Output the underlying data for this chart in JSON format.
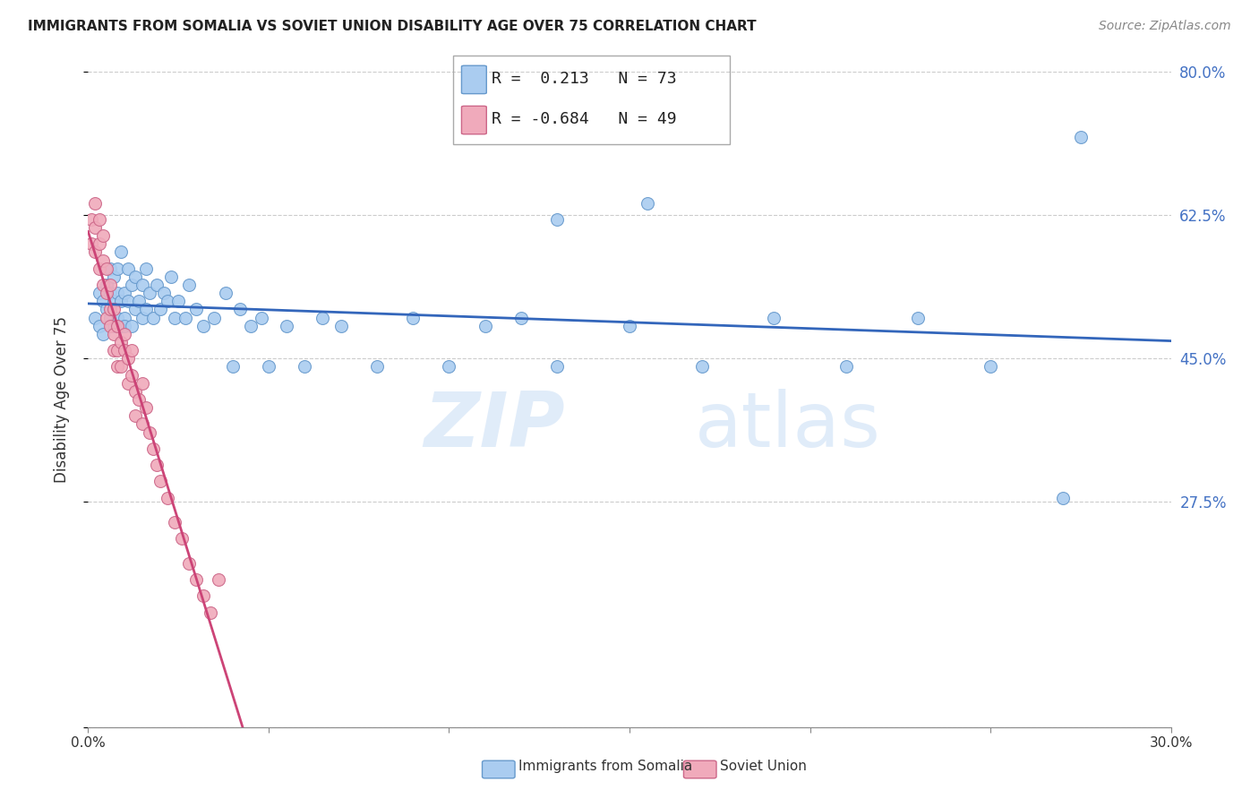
{
  "title": "IMMIGRANTS FROM SOMALIA VS SOVIET UNION DISABILITY AGE OVER 75 CORRELATION CHART",
  "source": "Source: ZipAtlas.com",
  "xlabel_somalia": "Immigrants from Somalia",
  "xlabel_soviet": "Soviet Union",
  "ylabel": "Disability Age Over 75",
  "xlim": [
    0.0,
    0.3
  ],
  "ylim": [
    0.0,
    0.8
  ],
  "x_ticks": [
    0.0,
    0.05,
    0.1,
    0.15,
    0.2,
    0.25,
    0.3
  ],
  "x_tick_labels": [
    "0.0%",
    "",
    "",
    "",
    "",
    "",
    "30.0%"
  ],
  "y_ticks": [
    0.0,
    0.275,
    0.45,
    0.625,
    0.8
  ],
  "y_tick_labels_right": [
    "",
    "27.5%",
    "45.0%",
    "62.5%",
    "80.0%"
  ],
  "somalia_color": "#aaccf0",
  "somalia_edge_color": "#6699cc",
  "soviet_color": "#f0aabb",
  "soviet_edge_color": "#cc6688",
  "trend_somalia_color": "#3366bb",
  "trend_soviet_color": "#cc4477",
  "R_somalia": 0.213,
  "N_somalia": 73,
  "R_soviet": -0.684,
  "N_soviet": 49,
  "somalia_x": [
    0.002,
    0.003,
    0.003,
    0.004,
    0.004,
    0.005,
    0.005,
    0.006,
    0.006,
    0.006,
    0.007,
    0.007,
    0.007,
    0.008,
    0.008,
    0.008,
    0.009,
    0.009,
    0.009,
    0.01,
    0.01,
    0.01,
    0.011,
    0.011,
    0.012,
    0.012,
    0.013,
    0.013,
    0.014,
    0.015,
    0.015,
    0.016,
    0.016,
    0.017,
    0.018,
    0.019,
    0.02,
    0.021,
    0.022,
    0.023,
    0.024,
    0.025,
    0.027,
    0.028,
    0.03,
    0.032,
    0.035,
    0.038,
    0.04,
    0.042,
    0.045,
    0.048,
    0.05,
    0.055,
    0.06,
    0.065,
    0.07,
    0.08,
    0.09,
    0.1,
    0.11,
    0.12,
    0.13,
    0.15,
    0.17,
    0.19,
    0.21,
    0.23,
    0.25,
    0.27,
    0.13,
    0.155,
    0.275
  ],
  "somalia_y": [
    0.5,
    0.53,
    0.49,
    0.52,
    0.48,
    0.51,
    0.54,
    0.5,
    0.53,
    0.56,
    0.49,
    0.52,
    0.55,
    0.5,
    0.53,
    0.56,
    0.49,
    0.52,
    0.58,
    0.5,
    0.53,
    0.49,
    0.56,
    0.52,
    0.49,
    0.54,
    0.51,
    0.55,
    0.52,
    0.5,
    0.54,
    0.51,
    0.56,
    0.53,
    0.5,
    0.54,
    0.51,
    0.53,
    0.52,
    0.55,
    0.5,
    0.52,
    0.5,
    0.54,
    0.51,
    0.49,
    0.5,
    0.53,
    0.44,
    0.51,
    0.49,
    0.5,
    0.44,
    0.49,
    0.44,
    0.5,
    0.49,
    0.44,
    0.5,
    0.44,
    0.49,
    0.5,
    0.44,
    0.49,
    0.44,
    0.5,
    0.44,
    0.5,
    0.44,
    0.28,
    0.62,
    0.64,
    0.72
  ],
  "soviet_x": [
    0.001,
    0.001,
    0.002,
    0.002,
    0.002,
    0.003,
    0.003,
    0.003,
    0.004,
    0.004,
    0.004,
    0.005,
    0.005,
    0.005,
    0.006,
    0.006,
    0.006,
    0.007,
    0.007,
    0.007,
    0.008,
    0.008,
    0.008,
    0.009,
    0.009,
    0.01,
    0.01,
    0.011,
    0.011,
    0.012,
    0.012,
    0.013,
    0.013,
    0.014,
    0.015,
    0.015,
    0.016,
    0.017,
    0.018,
    0.019,
    0.02,
    0.022,
    0.024,
    0.026,
    0.028,
    0.03,
    0.032,
    0.034,
    0.036
  ],
  "soviet_y": [
    0.62,
    0.59,
    0.64,
    0.61,
    0.58,
    0.62,
    0.59,
    0.56,
    0.6,
    0.57,
    0.54,
    0.56,
    0.53,
    0.5,
    0.54,
    0.51,
    0.49,
    0.51,
    0.48,
    0.46,
    0.49,
    0.46,
    0.44,
    0.47,
    0.44,
    0.46,
    0.48,
    0.45,
    0.42,
    0.46,
    0.43,
    0.41,
    0.38,
    0.4,
    0.37,
    0.42,
    0.39,
    0.36,
    0.34,
    0.32,
    0.3,
    0.28,
    0.25,
    0.23,
    0.2,
    0.18,
    0.16,
    0.14,
    0.18
  ],
  "watermark_zip": "ZIP",
  "watermark_atlas": "atlas",
  "background_color": "#ffffff",
  "grid_color": "#cccccc",
  "tick_color": "#4472c4",
  "axis_color": "#888888"
}
